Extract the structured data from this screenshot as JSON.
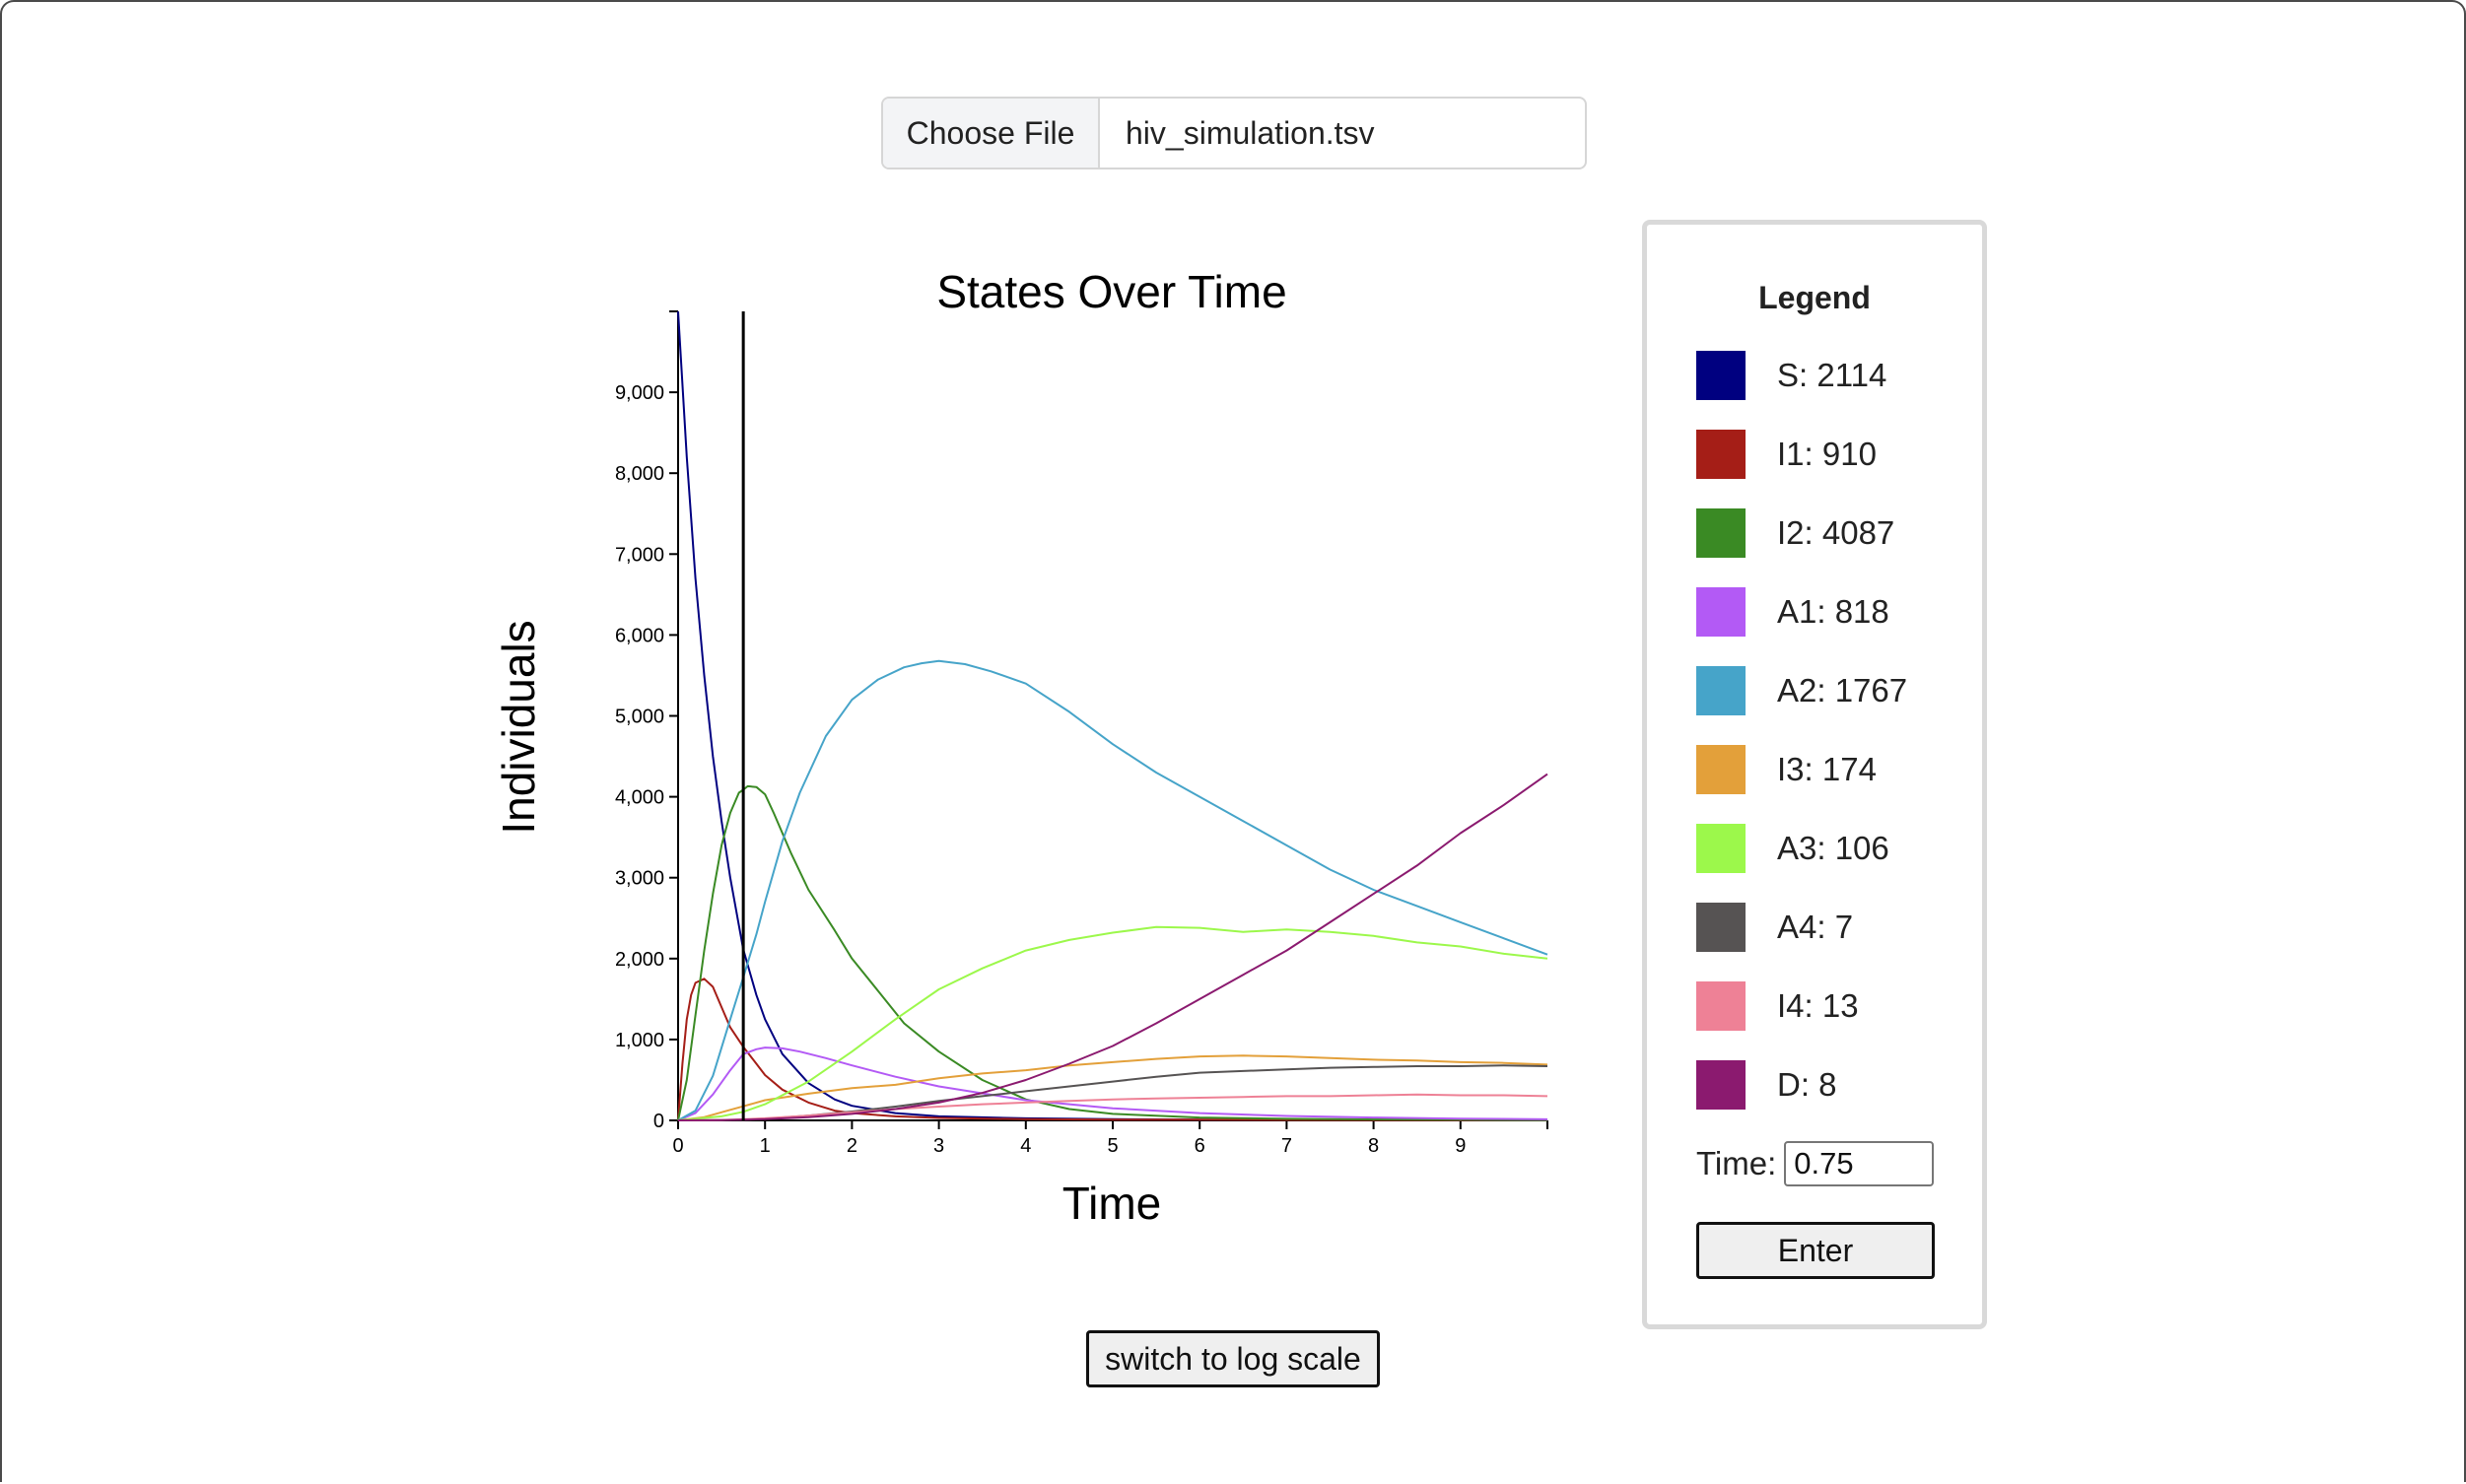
{
  "file_picker": {
    "button_label": "Choose File",
    "file_name": "hiv_simulation.tsv"
  },
  "legend": {
    "title": "Legend",
    "items": [
      {
        "label": "S: 2114",
        "color": "#000080"
      },
      {
        "label": "I1: 910",
        "color": "#a51e17"
      },
      {
        "label": "I2: 4087",
        "color": "#3a8a24"
      },
      {
        "label": "A1: 818",
        "color": "#b35af5"
      },
      {
        "label": "A2: 1767",
        "color": "#46a4c9"
      },
      {
        "label": "I3: 174",
        "color": "#e3a03a"
      },
      {
        "label": "A3: 106",
        "color": "#9cf84b"
      },
      {
        "label": "A4: 7",
        "color": "#565353"
      },
      {
        "label": "I4: 13",
        "color": "#ee8196"
      },
      {
        "label": "D: 8",
        "color": "#8b1a6f"
      }
    ],
    "time_label": "Time:",
    "time_value": "0.75",
    "enter_label": "Enter"
  },
  "scale_button_label": "switch to log scale",
  "chart_data": {
    "type": "line",
    "title": "States Over Time",
    "xlabel": "Time",
    "ylabel": "Individuals",
    "xlim": [
      0,
      10
    ],
    "ylim": [
      0,
      10000
    ],
    "x_ticks": [
      "0",
      "1",
      "2",
      "3",
      "4",
      "5",
      "6",
      "7",
      "8",
      "9"
    ],
    "y_ticks": [
      "0",
      "1,000",
      "2,000",
      "3,000",
      "4,000",
      "5,000",
      "6,000",
      "7,000",
      "8,000",
      "9,000"
    ],
    "marker_time": 0.75,
    "grid": false,
    "legend_position": "right",
    "series": [
      {
        "name": "S",
        "color": "#000080",
        "x": [
          0,
          0.1,
          0.2,
          0.3,
          0.4,
          0.5,
          0.6,
          0.75,
          0.9,
          1.0,
          1.2,
          1.5,
          1.8,
          2.0,
          2.5,
          3,
          4,
          5,
          6,
          7,
          8,
          9,
          10
        ],
        "y": [
          10000,
          8200,
          6700,
          5500,
          4500,
          3700,
          3000,
          2114,
          1550,
          1250,
          820,
          460,
          260,
          180,
          90,
          50,
          25,
          15,
          10,
          8,
          6,
          5,
          4
        ]
      },
      {
        "name": "I1",
        "color": "#a51e17",
        "x": [
          0,
          0.05,
          0.1,
          0.15,
          0.2,
          0.3,
          0.4,
          0.5,
          0.6,
          0.75,
          0.9,
          1.0,
          1.2,
          1.5,
          1.8,
          2.0,
          2.5,
          3,
          4,
          5,
          6,
          7,
          8,
          9,
          10
        ],
        "y": [
          0,
          700,
          1250,
          1550,
          1700,
          1750,
          1650,
          1400,
          1150,
          910,
          700,
          560,
          380,
          220,
          120,
          90,
          50,
          30,
          15,
          10,
          8,
          6,
          5,
          4,
          3
        ]
      },
      {
        "name": "I2",
        "color": "#3a8a24",
        "x": [
          0,
          0.1,
          0.2,
          0.3,
          0.4,
          0.5,
          0.6,
          0.7,
          0.75,
          0.8,
          0.9,
          1.0,
          1.1,
          1.3,
          1.5,
          1.8,
          2.0,
          2.3,
          2.6,
          3.0,
          3.5,
          4,
          4.5,
          5,
          6,
          7,
          8,
          9,
          10
        ],
        "y": [
          0,
          500,
          1300,
          2100,
          2800,
          3400,
          3800,
          4050,
          4087,
          4130,
          4120,
          4030,
          3800,
          3300,
          2850,
          2350,
          2000,
          1600,
          1200,
          850,
          500,
          260,
          140,
          80,
          35,
          20,
          12,
          8,
          5
        ]
      },
      {
        "name": "A1",
        "color": "#b35af5",
        "x": [
          0,
          0.2,
          0.4,
          0.6,
          0.75,
          0.9,
          1.0,
          1.2,
          1.4,
          1.7,
          2.0,
          2.5,
          3,
          4,
          5,
          6,
          7,
          8,
          9,
          10
        ],
        "y": [
          0,
          90,
          320,
          620,
          818,
          880,
          900,
          890,
          850,
          770,
          680,
          540,
          420,
          250,
          150,
          90,
          55,
          35,
          22,
          14
        ]
      },
      {
        "name": "A2",
        "color": "#46a4c9",
        "x": [
          0,
          0.2,
          0.4,
          0.6,
          0.75,
          0.9,
          1.0,
          1.2,
          1.4,
          1.7,
          2.0,
          2.3,
          2.6,
          2.8,
          3.0,
          3.3,
          3.6,
          4.0,
          4.5,
          5,
          5.5,
          6,
          6.5,
          7,
          7.5,
          8,
          8.5,
          9,
          9.5,
          10
        ],
        "y": [
          0,
          120,
          550,
          1250,
          1767,
          2300,
          2700,
          3450,
          4050,
          4750,
          5200,
          5450,
          5600,
          5650,
          5680,
          5640,
          5550,
          5400,
          5050,
          4650,
          4300,
          4000,
          3700,
          3400,
          3100,
          2850,
          2650,
          2450,
          2250,
          2050
        ]
      },
      {
        "name": "I3",
        "color": "#e3a03a",
        "x": [
          0,
          0.3,
          0.6,
          0.75,
          1.0,
          1.5,
          2.0,
          2.5,
          3,
          3.5,
          4,
          4.5,
          5,
          5.5,
          6,
          6.5,
          7,
          7.5,
          8,
          8.5,
          9,
          9.5,
          10
        ],
        "y": [
          0,
          40,
          130,
          174,
          250,
          330,
          400,
          440,
          520,
          580,
          620,
          680,
          720,
          760,
          790,
          800,
          790,
          770,
          750,
          740,
          720,
          710,
          690
        ]
      },
      {
        "name": "A3",
        "color": "#9cf84b",
        "x": [
          0,
          0.5,
          0.75,
          1.0,
          1.5,
          2.0,
          2.5,
          3,
          3.5,
          4,
          4.5,
          5,
          5.5,
          6,
          6.5,
          7,
          7.5,
          8,
          8.5,
          9,
          9.5,
          10
        ],
        "y": [
          0,
          50,
          106,
          200,
          480,
          850,
          1250,
          1620,
          1880,
          2100,
          2230,
          2320,
          2390,
          2380,
          2330,
          2360,
          2330,
          2280,
          2200,
          2150,
          2060,
          2000
        ]
      },
      {
        "name": "A4",
        "color": "#565353",
        "x": [
          0,
          0.5,
          0.75,
          1.0,
          1.5,
          2.0,
          2.5,
          3,
          3.5,
          4,
          4.5,
          5,
          5.5,
          6,
          6.5,
          7,
          7.5,
          8,
          8.5,
          9,
          9.5,
          10
        ],
        "y": [
          0,
          3,
          7,
          20,
          60,
          110,
          170,
          240,
          300,
          360,
          420,
          480,
          540,
          590,
          610,
          630,
          650,
          660,
          670,
          670,
          680,
          670
        ]
      },
      {
        "name": "I4",
        "color": "#ee8196",
        "x": [
          0,
          0.5,
          0.75,
          1.0,
          1.5,
          2.0,
          2.5,
          3,
          3.5,
          4,
          4.5,
          5,
          5.5,
          6,
          6.5,
          7,
          7.5,
          8,
          8.5,
          9,
          9.5,
          10
        ],
        "y": [
          0,
          5,
          13,
          25,
          60,
          100,
          140,
          170,
          200,
          220,
          240,
          260,
          270,
          280,
          290,
          300,
          300,
          310,
          320,
          310,
          310,
          300
        ]
      },
      {
        "name": "D",
        "color": "#8b1a6f",
        "x": [
          0,
          0.5,
          0.75,
          1.0,
          1.5,
          2.0,
          2.5,
          3,
          3.5,
          4,
          4.5,
          5,
          5.5,
          6,
          6.5,
          7,
          7.5,
          8,
          8.5,
          9,
          9.5,
          10
        ],
        "y": [
          0,
          3,
          8,
          15,
          40,
          80,
          140,
          220,
          340,
          500,
          700,
          920,
          1200,
          1500,
          1800,
          2100,
          2450,
          2800,
          3150,
          3550,
          3900,
          4280
        ]
      }
    ]
  }
}
